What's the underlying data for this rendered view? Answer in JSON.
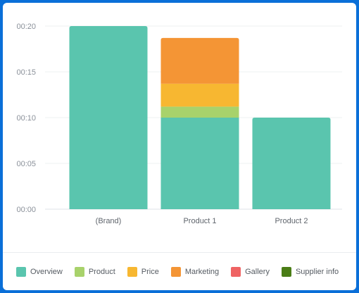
{
  "chart_data": {
    "type": "bar",
    "stacked": true,
    "categories": [
      "(Brand)",
      "Product 1",
      "Product 2"
    ],
    "series": [
      {
        "name": "Overview",
        "color": "#5ac5ae",
        "values": [
          20,
          10,
          10
        ]
      },
      {
        "name": "Product",
        "color": "#a8d26b",
        "values": [
          0,
          1.2,
          0
        ]
      },
      {
        "name": "Price",
        "color": "#f7b731",
        "values": [
          0,
          2.5,
          0
        ]
      },
      {
        "name": "Marketing",
        "color": "#f49535",
        "values": [
          0,
          5,
          0
        ]
      },
      {
        "name": "Gallery",
        "color": "#ef6363",
        "values": [
          0,
          0,
          0
        ]
      },
      {
        "name": "Supplier info",
        "color": "#4a7d16",
        "values": [
          0,
          0,
          0
        ]
      }
    ],
    "y_ticks": [
      {
        "value": 0,
        "label": "00:00"
      },
      {
        "value": 5,
        "label": "00:05"
      },
      {
        "value": 10,
        "label": "00:10"
      },
      {
        "value": 15,
        "label": "00:15"
      },
      {
        "value": 20,
        "label": "00:20"
      }
    ],
    "ylim": [
      0,
      20
    ],
    "title": "",
    "xlabel": "",
    "ylabel": "",
    "grid": true,
    "legend_position": "bottom"
  }
}
